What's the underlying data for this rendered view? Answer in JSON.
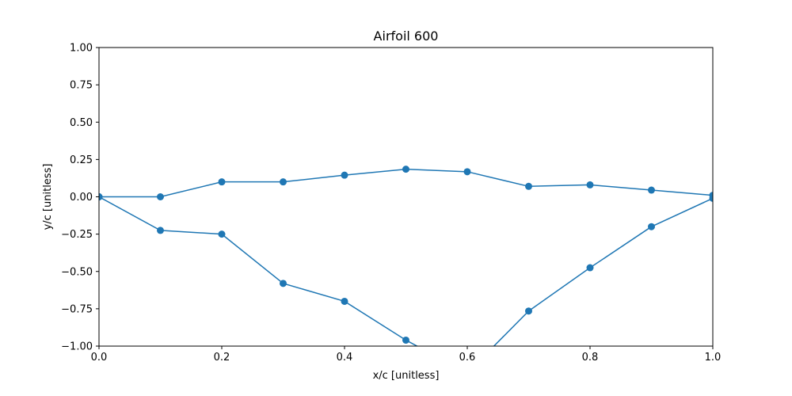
{
  "chart_data": {
    "type": "line",
    "title": "Airfoil 600",
    "xlabel": "x/c [unitless]",
    "ylabel": "y/c [unitless]",
    "xlim": [
      0,
      1
    ],
    "ylim": [
      -1,
      1
    ],
    "xticks": [
      0.0,
      0.2,
      0.4,
      0.6,
      0.8,
      1.0
    ],
    "xtick_labels": [
      "0.0",
      "0.2",
      "0.4",
      "0.6",
      "0.8",
      "1.0"
    ],
    "yticks": [
      1.0,
      0.75,
      0.5,
      0.25,
      0.0,
      -0.25,
      -0.5,
      -0.75,
      -1.0
    ],
    "ytick_labels": [
      "1.00",
      "0.75",
      "0.50",
      "0.25",
      "0.00",
      "−0.25",
      "−0.50",
      "−0.75",
      "−1.00"
    ],
    "grid": false,
    "color": "#1f77b4",
    "series": [
      {
        "x": [
          0.0,
          0.1,
          0.2,
          0.3,
          0.4,
          0.5,
          0.6,
          0.7,
          0.8,
          0.9,
          1.0
        ],
        "y": [
          0.0,
          0.0,
          0.1,
          0.1,
          0.145,
          0.185,
          0.168,
          0.07,
          0.08,
          0.045,
          0.01
        ]
      },
      {
        "x": [
          0.0,
          0.1,
          0.2,
          0.3,
          0.4,
          0.5,
          0.6,
          0.7,
          0.8,
          0.9,
          1.0
        ],
        "y": [
          0.0,
          -0.225,
          -0.25,
          -0.58,
          -0.7,
          -0.96,
          -1.18,
          -0.765,
          -0.475,
          -0.2,
          -0.01
        ]
      }
    ]
  }
}
